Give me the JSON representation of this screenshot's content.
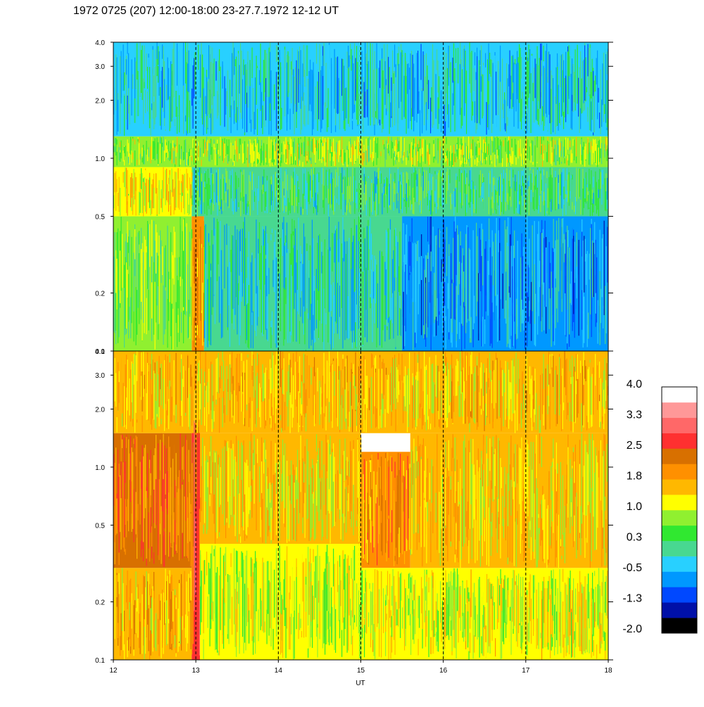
{
  "title": "1972 0725 (207) 12:00-18:00 23-27.7.1972  12-12 UT",
  "colors": {
    "scale": [
      "#000000",
      "#0010a8",
      "#0048ff",
      "#0098ff",
      "#28d0ff",
      "#48d890",
      "#30e830",
      "#90f030",
      "#ffff00",
      "#ffb800",
      "#ff9000",
      "#d87000",
      "#ff3030",
      "#ff6868",
      "#ff9898",
      "#ffffff"
    ],
    "dashed_line": "#000000",
    "frame": "#000000"
  },
  "chart_data": [
    {
      "type": "heatmap",
      "panel": "upper",
      "xlim": [
        12,
        18
      ],
      "ylim": [
        0.1,
        4.0
      ],
      "yscale": "log",
      "xticks": [
        "12",
        "13",
        "14",
        "15",
        "16",
        "17",
        "18"
      ],
      "yticks": [
        "0.1",
        "0.2",
        "0.5",
        "1.0",
        "2.0",
        "3.0",
        "4.0"
      ],
      "dashed_vertical_lines": [
        13,
        14,
        15,
        16,
        17
      ],
      "bands": [
        {
          "y": [
            0.1,
            0.5
          ],
          "x": [
            12,
            12.95
          ],
          "level": 0.6
        },
        {
          "y": [
            0.1,
            0.5
          ],
          "x": [
            12.95,
            13.1
          ],
          "level": 1.8
        },
        {
          "y": [
            0.1,
            0.5
          ],
          "x": [
            13.1,
            15.5
          ],
          "level": -0.2
        },
        {
          "y": [
            0.1,
            0.5
          ],
          "x": [
            15.5,
            18
          ],
          "level": -0.7
        },
        {
          "y": [
            0.5,
            0.9
          ],
          "x": [
            12,
            12.95
          ],
          "level": 1.3
        },
        {
          "y": [
            0.5,
            0.9
          ],
          "x": [
            12.95,
            18
          ],
          "level": 0.1
        },
        {
          "y": [
            0.9,
            1.3
          ],
          "x": [
            12,
            18
          ],
          "level": 0.8
        },
        {
          "y": [
            1.3,
            4.0
          ],
          "x": [
            12,
            18
          ],
          "level": -0.3
        }
      ]
    },
    {
      "type": "heatmap",
      "panel": "lower",
      "xlim": [
        12,
        18
      ],
      "ylim": [
        0.1,
        4.0
      ],
      "yscale": "log",
      "xticks": [
        "12",
        "13",
        "14",
        "15",
        "16",
        "17",
        "18"
      ],
      "yticks": [
        "0.1",
        "0.2",
        "0.5",
        "1.0",
        "2.0",
        "3.0",
        "4.0"
      ],
      "xlabel": "UT",
      "dashed_vertical_lines": [
        13,
        14,
        15,
        16,
        17
      ],
      "bands": [
        {
          "y": [
            0.1,
            0.3
          ],
          "x": [
            12,
            12.95
          ],
          "level": 1.7
        },
        {
          "y": [
            0.3,
            1.5
          ],
          "x": [
            12,
            12.95
          ],
          "level": 2.2
        },
        {
          "y": [
            0.1,
            4.0
          ],
          "x": [
            12.95,
            13.05
          ],
          "level": 2.6
        },
        {
          "y": [
            0.1,
            0.4
          ],
          "x": [
            13.05,
            15.0
          ],
          "level": 1.0
        },
        {
          "y": [
            0.4,
            1.5
          ],
          "x": [
            13.05,
            15.0
          ],
          "level": 1.4
        },
        {
          "y": [
            0.3,
            1.2
          ],
          "x": [
            15.0,
            15.6
          ],
          "level": 2.0
        },
        {
          "y": [
            0.1,
            0.3
          ],
          "x": [
            15.0,
            18
          ],
          "level": 1.1
        },
        {
          "y": [
            0.3,
            1.5
          ],
          "x": [
            15.6,
            18
          ],
          "level": 1.4
        },
        {
          "y": [
            1.5,
            4.0
          ],
          "x": [
            12,
            18
          ],
          "level": 1.5
        }
      ]
    }
  ],
  "colorbar": {
    "levels": [
      "-2.0",
      "-1.3",
      "-0.5",
      "0.3",
      "1.0",
      "1.8",
      "2.5",
      "3.3",
      "4.0"
    ]
  }
}
